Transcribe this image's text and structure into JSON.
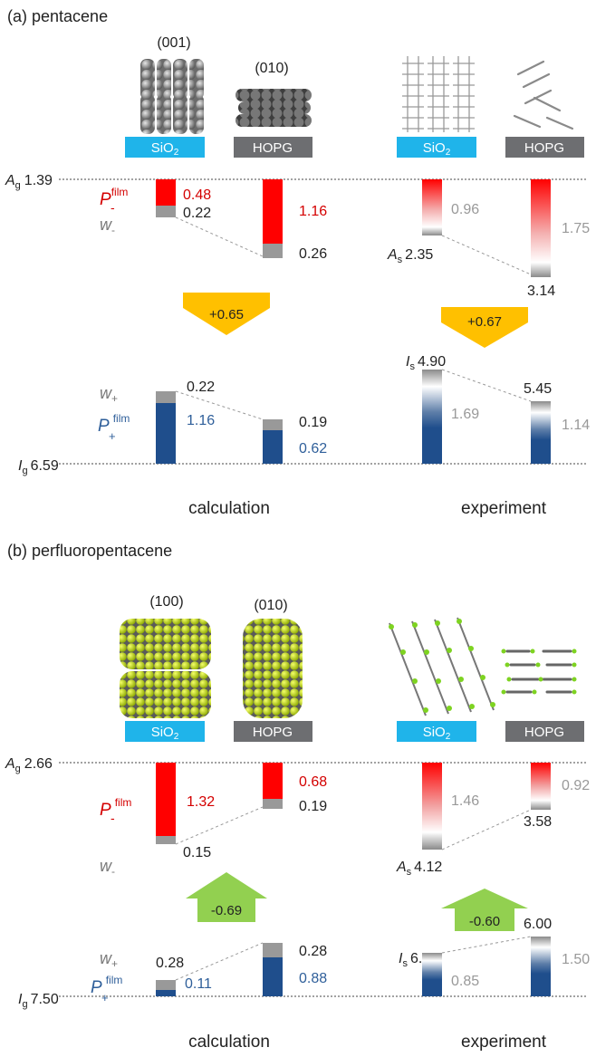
{
  "colors": {
    "red": "#ff0000",
    "red_text": "#d40000",
    "blue": "#1f4e8c",
    "blue_text": "#2f5f9a",
    "gray_w": "#999999",
    "gray_text": "#999999",
    "sio2": "#1fb4ea",
    "hopg": "#6d6e71",
    "orange_arrow": "#ffc000",
    "green_arrow": "#92d050"
  },
  "panel_a": {
    "title": "(a) pentacene",
    "calc": {
      "label_sio2_orient": "(001)",
      "label_hopg_orient": "(010)",
      "substrate_sio2": "SiO",
      "substrate_sio2_sub": "2",
      "substrate_hopg": "HOPG",
      "Ag_symbol": "A",
      "Ag_sub": "g",
      "Ag_value": "1.39",
      "Ig_symbol": "I",
      "Ig_sub": "g",
      "Ig_value": "6.59",
      "Pminus_symbol": "P",
      "Pminus_sub": "-",
      "Pminus_sup": "film",
      "wminus_symbol": "w",
      "wminus_sub": "-",
      "wplus_symbol": "w",
      "wplus_sub": "+",
      "Pplus_symbol": "P",
      "Pplus_sub": "+",
      "Pplus_sup": "film",
      "sio2_Pminus": "0.48",
      "sio2_wminus": "0.22",
      "hopg_Pminus": "1.16",
      "hopg_wminus": "0.26",
      "arrow_value": "+0.65",
      "sio2_wplus": "0.22",
      "sio2_Pplus": "1.16",
      "hopg_wplus": "0.19",
      "hopg_Pplus": "0.62",
      "caption": "calculation"
    },
    "exp": {
      "substrate_sio2": "SiO",
      "substrate_sio2_sub": "2",
      "substrate_hopg": "HOPG",
      "sio2_top": "0.96",
      "As_symbol": "A",
      "As_sub": "s",
      "As_value": "2.35",
      "hopg_top": "1.75",
      "hopg_bottom": "3.14",
      "arrow_value": "+0.67",
      "Is_symbol": "I",
      "Is_sub": "s",
      "Is_value": "4.90",
      "sio2_bottom_gray": "1.69",
      "hopg_ion_value": "5.45",
      "hopg_bottom_gray": "1.14",
      "caption": "experiment"
    }
  },
  "panel_b": {
    "title": "(b) perfluoropentacene",
    "calc": {
      "label_sio2_orient": "(100)",
      "label_hopg_orient": "(010)",
      "substrate_sio2": "SiO",
      "substrate_sio2_sub": "2",
      "substrate_hopg": "HOPG",
      "Ag_symbol": "A",
      "Ag_sub": "g",
      "Ag_value": "2.66",
      "Ig_symbol": "I",
      "Ig_sub": "g",
      "Ig_value": "7.50",
      "Pminus_symbol": "P",
      "Pminus_sub": "-",
      "Pminus_sup": "film",
      "wminus_symbol": "w",
      "wminus_sub": "-",
      "wplus_symbol": "w",
      "wplus_sub": "+",
      "Pplus_symbol": "P",
      "Pplus_sub": "+",
      "Pplus_sup": "film",
      "sio2_Pminus": "1.32",
      "sio2_wminus": "0.15",
      "hopg_Pminus": "0.68",
      "hopg_wminus": "0.19",
      "arrow_value": "-0.69",
      "sio2_wplus": "0.28",
      "sio2_Pplus": "0.11",
      "hopg_wplus": "0.28",
      "hopg_Pplus": "0.88",
      "caption": "calculation"
    },
    "exp": {
      "substrate_sio2": "SiO",
      "substrate_sio2_sub": "2",
      "substrate_hopg": "HOPG",
      "sio2_top": "1.46",
      "As_symbol": "A",
      "As_sub": "s",
      "As_value": "4.12",
      "hopg_top": "0.92",
      "hopg_bottom": "3.58",
      "arrow_value": "-0.60",
      "Is_symbol": "I",
      "Is_sub": "s",
      "Is_value": "6.65",
      "sio2_bottom_gray": "0.85",
      "hopg_ion_value": "6.00",
      "hopg_bottom_gray": "1.50",
      "caption": "experiment"
    }
  }
}
